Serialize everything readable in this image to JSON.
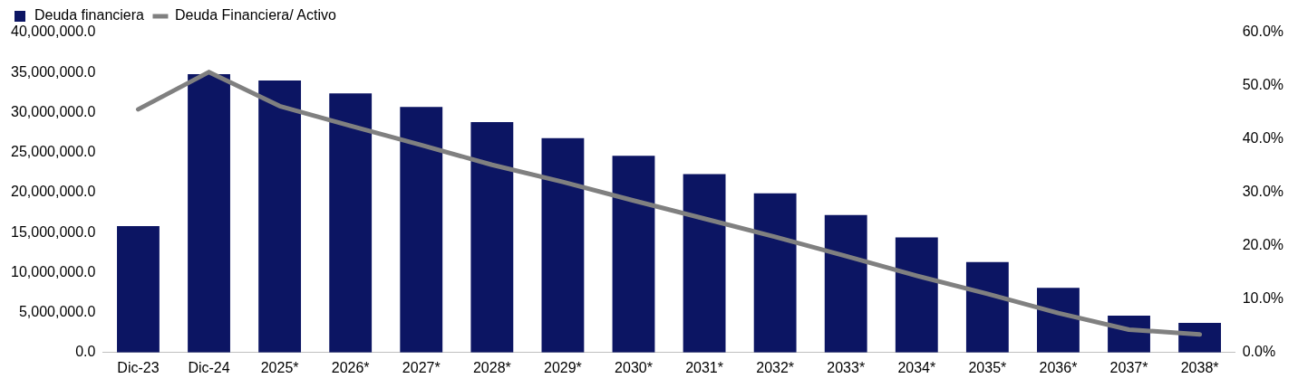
{
  "chart_data": {
    "type": "bar",
    "categories": [
      "Dic-23",
      "Dic-24",
      "2025*",
      "2026*",
      "2027*",
      "2028*",
      "2029*",
      "2030*",
      "2031*",
      "2032*",
      "2033*",
      "2034*",
      "2035*",
      "2036*",
      "2037*",
      "2038*"
    ],
    "series": [
      {
        "name": "Deuda financiera",
        "color": "#0c1563",
        "values": [
          15800000,
          34800000,
          34000000,
          32400000,
          30700000,
          28800000,
          26800000,
          24600000,
          22300000,
          19900000,
          17200000,
          14400000,
          11300000,
          8100000,
          4600000,
          3700000
        ]
      },
      {
        "name": "Deuda Financiera/ Activo",
        "type": "line",
        "axis": "y2",
        "color": "#808080",
        "values": [
          45.6,
          52.6,
          46.2,
          42.5,
          38.9,
          35.2,
          32.0,
          28.5,
          25.1,
          21.7,
          18.1,
          14.4,
          11.0,
          7.4,
          4.3,
          3.4
        ]
      }
    ],
    "ylim": [
      0,
      40000000
    ],
    "yticks": [
      {
        "value": 0,
        "label": "0.0"
      },
      {
        "value": 5000000,
        "label": "5,000,000.0"
      },
      {
        "value": 10000000,
        "label": "10,000,000.0"
      },
      {
        "value": 15000000,
        "label": "15,000,000.0"
      },
      {
        "value": 20000000,
        "label": "20,000,000.0"
      },
      {
        "value": 25000000,
        "label": "25,000,000.0"
      },
      {
        "value": 30000000,
        "label": "30,000,000.0"
      },
      {
        "value": 35000000,
        "label": "35,000,000.0"
      },
      {
        "value": 40000000,
        "label": "40,000,000.0"
      }
    ],
    "y2lim": [
      0,
      60
    ],
    "y2ticks": [
      {
        "value": 0,
        "label": "0.0%"
      },
      {
        "value": 10,
        "label": "10.0%"
      },
      {
        "value": 20,
        "label": "20.0%"
      },
      {
        "value": 30,
        "label": "30.0%"
      },
      {
        "value": 40,
        "label": "40.0%"
      },
      {
        "value": 50,
        "label": "50.0%"
      },
      {
        "value": 60,
        "label": "60.0%"
      }
    ],
    "grid": false,
    "legend": "top left",
    "marker": "none",
    "line_style": "solid"
  }
}
